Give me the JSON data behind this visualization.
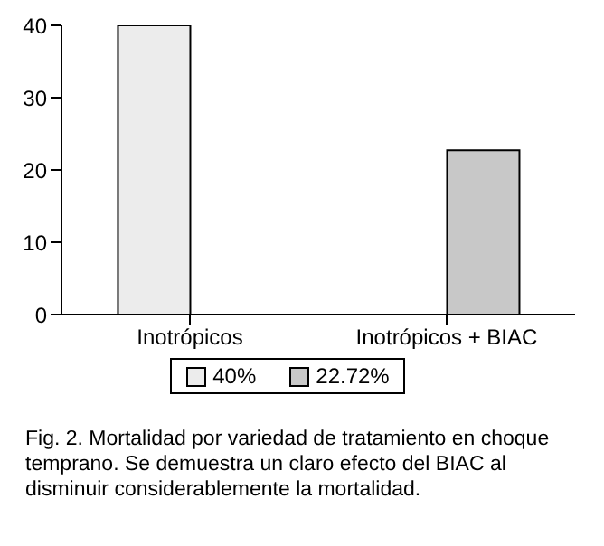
{
  "chart_data": {
    "type": "bar",
    "categories": [
      "Inotrópicos",
      "Inotrópicos + BIAC"
    ],
    "series": [
      {
        "name": "40%",
        "color": "#ececec",
        "values": [
          40,
          null
        ]
      },
      {
        "name": "22.72%",
        "color": "#c8c8c8",
        "values": [
          null,
          22.72
        ]
      }
    ],
    "ylim": [
      0,
      40
    ],
    "yticks": [
      0,
      10,
      20,
      30,
      40
    ],
    "grid": false,
    "legend": "bottom",
    "annotations": [
      "Fig. 2. Mortalidad por variedad de tratamiento en choque temprano. Se demuestra un claro efecto del BIAC al disminuir considerablemente la mortalidad."
    ]
  }
}
